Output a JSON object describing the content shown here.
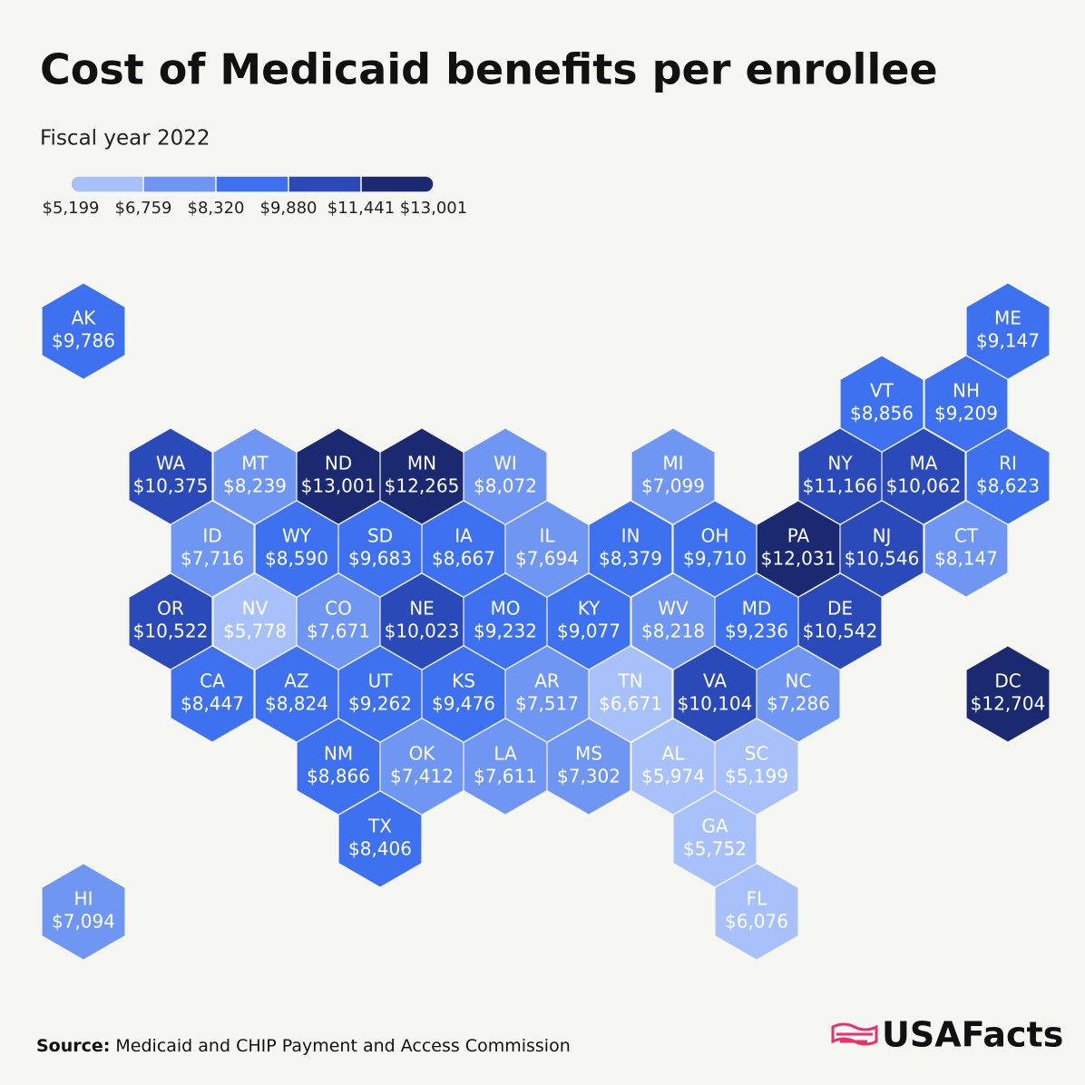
{
  "header": {
    "title": "Cost of Medicaid benefits per enrollee",
    "subtitle": "Fiscal year 2022"
  },
  "legend": {
    "ticks": [
      {
        "value": 5199,
        "label": "$5,199"
      },
      {
        "value": 6759,
        "label": "$6,759"
      },
      {
        "value": 8320,
        "label": "$8,320"
      },
      {
        "value": 9880,
        "label": "$9,880"
      },
      {
        "value": 11441,
        "label": "$11,441"
      },
      {
        "value": 13001,
        "label": "$13,001"
      }
    ],
    "colors": [
      "#a9c1fa",
      "#6f96f3",
      "#3e71ef",
      "#2b4ab9",
      "#1a2970"
    ]
  },
  "map": {
    "states": [
      {
        "label": "AK",
        "value": 9786,
        "value_label": "$9,786"
      },
      {
        "label": "ME",
        "value": 9147,
        "value_label": "$9,147"
      },
      {
        "label": "VT",
        "value": 8856,
        "value_label": "$8,856"
      },
      {
        "label": "NH",
        "value": 9209,
        "value_label": "$9,209"
      },
      {
        "label": "WA",
        "value": 10375,
        "value_label": "$10,375"
      },
      {
        "label": "MT",
        "value": 8239,
        "value_label": "$8,239"
      },
      {
        "label": "ND",
        "value": 13001,
        "value_label": "$13,001"
      },
      {
        "label": "MN",
        "value": 12265,
        "value_label": "$12,265"
      },
      {
        "label": "WI",
        "value": 8072,
        "value_label": "$8,072"
      },
      {
        "label": "MI",
        "value": 7099,
        "value_label": "$7,099"
      },
      {
        "label": "NY",
        "value": 11166,
        "value_label": "$11,166"
      },
      {
        "label": "MA",
        "value": 10062,
        "value_label": "$10,062"
      },
      {
        "label": "RI",
        "value": 8623,
        "value_label": "$8,623"
      },
      {
        "label": "ID",
        "value": 7716,
        "value_label": "$7,716"
      },
      {
        "label": "WY",
        "value": 8590,
        "value_label": "$8,590"
      },
      {
        "label": "SD",
        "value": 9683,
        "value_label": "$9,683"
      },
      {
        "label": "IA",
        "value": 8667,
        "value_label": "$8,667"
      },
      {
        "label": "IL",
        "value": 7694,
        "value_label": "$7,694"
      },
      {
        "label": "IN",
        "value": 8379,
        "value_label": "$8,379"
      },
      {
        "label": "OH",
        "value": 9710,
        "value_label": "$9,710"
      },
      {
        "label": "PA",
        "value": 12031,
        "value_label": "$12,031"
      },
      {
        "label": "NJ",
        "value": 10546,
        "value_label": "$10,546"
      },
      {
        "label": "CT",
        "value": 8147,
        "value_label": "$8,147"
      },
      {
        "label": "OR",
        "value": 10522,
        "value_label": "$10,522"
      },
      {
        "label": "NV",
        "value": 5778,
        "value_label": "$5,778"
      },
      {
        "label": "CO",
        "value": 7671,
        "value_label": "$7,671"
      },
      {
        "label": "NE",
        "value": 10023,
        "value_label": "$10,023"
      },
      {
        "label": "MO",
        "value": 9232,
        "value_label": "$9,232"
      },
      {
        "label": "KY",
        "value": 9077,
        "value_label": "$9,077"
      },
      {
        "label": "WV",
        "value": 8218,
        "value_label": "$8,218"
      },
      {
        "label": "MD",
        "value": 9236,
        "value_label": "$9,236"
      },
      {
        "label": "DE",
        "value": 10542,
        "value_label": "$10,542"
      },
      {
        "label": "CA",
        "value": 8447,
        "value_label": "$8,447"
      },
      {
        "label": "AZ",
        "value": 8824,
        "value_label": "$8,824"
      },
      {
        "label": "UT",
        "value": 9262,
        "value_label": "$9,262"
      },
      {
        "label": "KS",
        "value": 9476,
        "value_label": "$9,476"
      },
      {
        "label": "AR",
        "value": 7517,
        "value_label": "$7,517"
      },
      {
        "label": "TN",
        "value": 6671,
        "value_label": "$6,671"
      },
      {
        "label": "VA",
        "value": 10104,
        "value_label": "$10,104"
      },
      {
        "label": "NC",
        "value": 7286,
        "value_label": "$7,286"
      },
      {
        "label": "DC",
        "value": 12704,
        "value_label": "$12,704"
      },
      {
        "label": "NM",
        "value": 8866,
        "value_label": "$8,866"
      },
      {
        "label": "OK",
        "value": 7412,
        "value_label": "$7,412"
      },
      {
        "label": "LA",
        "value": 7611,
        "value_label": "$7,611"
      },
      {
        "label": "MS",
        "value": 7302,
        "value_label": "$7,302"
      },
      {
        "label": "AL",
        "value": 5974,
        "value_label": "$5,974"
      },
      {
        "label": "SC",
        "value": 5199,
        "value_label": "$5,199"
      },
      {
        "label": "TX",
        "value": 8406,
        "value_label": "$8,406"
      },
      {
        "label": "GA",
        "value": 5752,
        "value_label": "$5,752"
      },
      {
        "label": "HI",
        "value": 7094,
        "value_label": "$7,094"
      },
      {
        "label": "FL",
        "value": 6076,
        "value_label": "$6,076"
      }
    ]
  },
  "footer": {
    "source_label": "Source:",
    "source": "Medicaid and CHIP Payment and Access Commission",
    "logo": "USAFacts"
  }
}
